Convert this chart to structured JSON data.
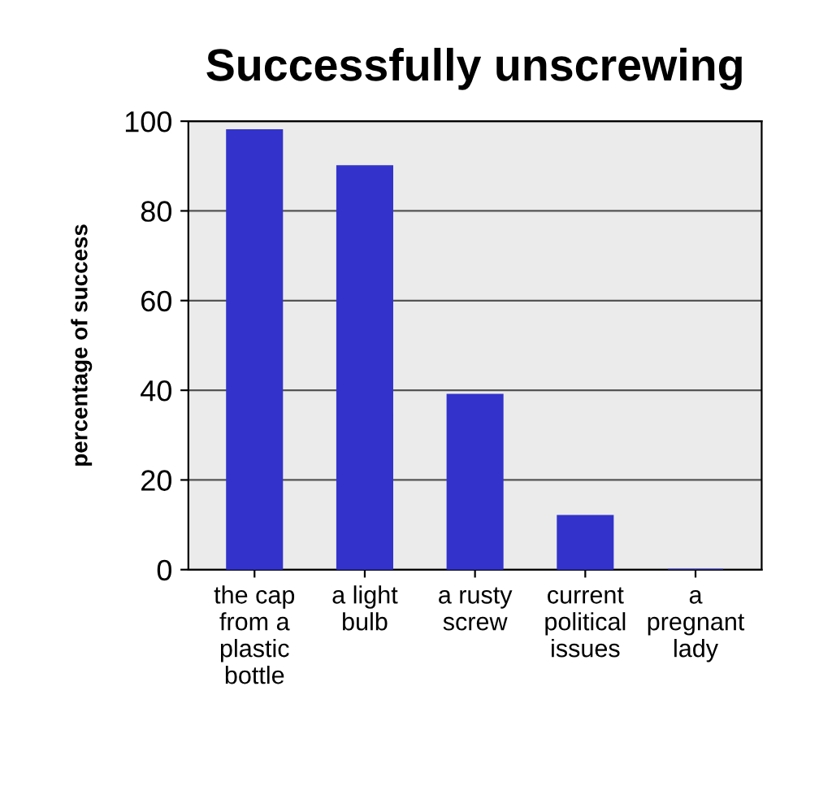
{
  "chart_data": {
    "type": "bar",
    "title": "Successfully unscrewing",
    "ylabel": "percentage of success",
    "categories": [
      "the cap\nfrom a\nplastic\nbottle",
      "a light\nbulb",
      "a rusty\nscrew",
      "current\npolitical\nissues",
      "a\npregnant\nlady"
    ],
    "values": [
      98,
      90,
      39,
      12,
      0
    ],
    "color": "#3333cc",
    "ylim": [
      0,
      100
    ],
    "yticks": [
      0,
      20,
      40,
      60,
      80,
      100
    ],
    "grid": "y"
  }
}
